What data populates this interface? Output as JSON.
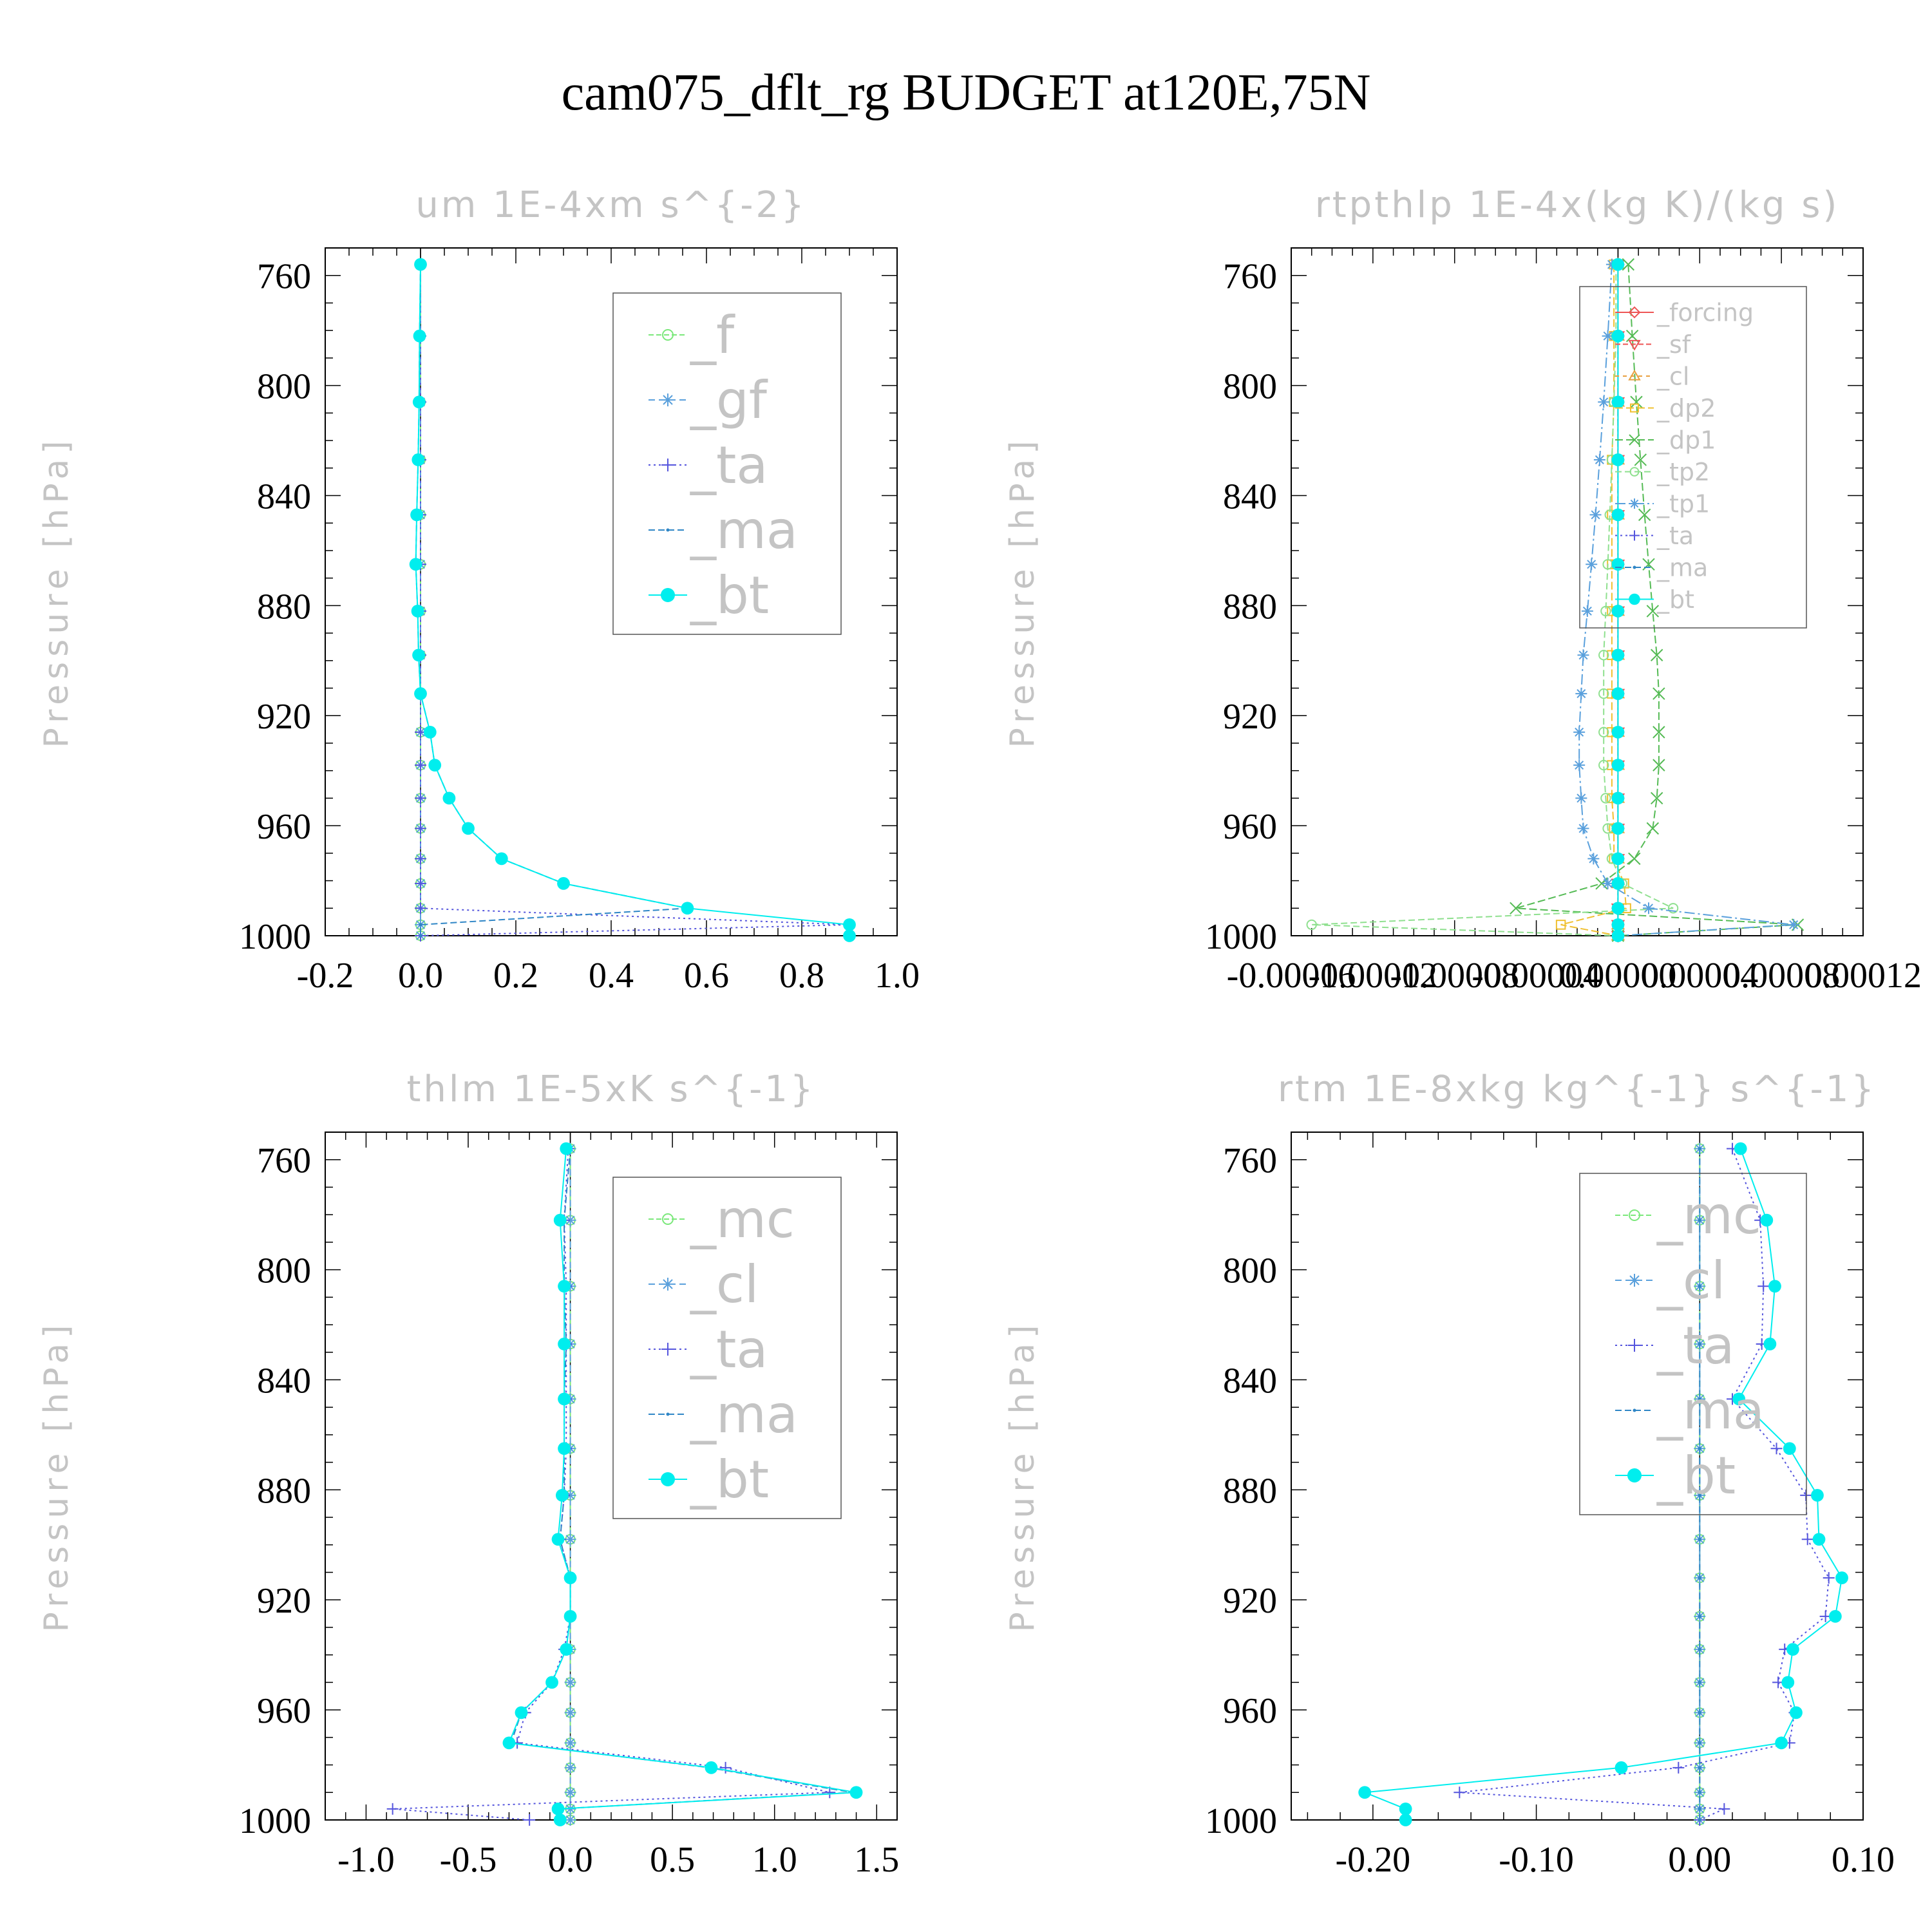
{
  "title": "cam075_dflt_rg  BUDGET at120E,75N",
  "chart_data": [
    {
      "type": "line",
      "title": "um   1E-4xm s^{-2}",
      "ylabel": "Pressure [hPa]",
      "yticks": [
        760,
        800,
        840,
        880,
        920,
        960,
        1000
      ],
      "yticklabels": [
        "760",
        "800",
        "840",
        "880",
        "920",
        "960",
        "1000"
      ],
      "ylim": [
        750,
        1000
      ],
      "xticks": [
        -0.2,
        0.0,
        0.2,
        0.4,
        0.6,
        0.8,
        1.0
      ],
      "xticklabels": [
        "-0.2",
        "0.0",
        "0.2",
        "0.4",
        "0.6",
        "0.8",
        "1.0"
      ],
      "xlim": [
        -0.2,
        1.0
      ],
      "minor_x": 4,
      "grid": false,
      "legend_position": "top-right",
      "p": [
        756,
        782,
        806,
        827,
        847,
        865,
        882,
        898,
        912,
        926,
        938,
        950,
        961,
        972,
        981,
        990,
        996,
        1000
      ],
      "series": [
        {
          "name": "_f",
          "color": "#7be87b",
          "marker": "circle-open",
          "dash": "8,4",
          "values": [
            0,
            0,
            0,
            0,
            0,
            0,
            0,
            0,
            0,
            0,
            0,
            0,
            0,
            0,
            0,
            0,
            0,
            0
          ]
        },
        {
          "name": "_gf",
          "color": "#5aa0dc",
          "marker": "star",
          "dash": "10,6",
          "values": [
            0,
            0,
            0,
            0,
            0,
            0,
            0,
            0,
            0,
            0,
            0,
            0,
            0,
            0,
            0,
            0,
            0,
            0
          ]
        },
        {
          "name": "_ta",
          "color": "#5555dd",
          "marker": "plus",
          "dash": "3,5",
          "values": [
            0,
            0,
            0,
            0,
            0,
            0,
            0,
            0,
            0,
            0,
            0,
            0,
            0,
            0,
            0,
            0,
            0.9,
            0
          ]
        },
        {
          "name": "_ma",
          "color": "#2f86c6",
          "marker": "dot",
          "dash": "10,5",
          "values": [
            0,
            -0.002,
            -0.003,
            -0.005,
            -0.008,
            -0.01,
            -0.006,
            -0.004,
            0,
            0.02,
            0.03,
            0.06,
            0.1,
            0.17,
            0.3,
            0.56,
            0,
            0
          ]
        },
        {
          "name": "_bt",
          "color": "#00eeee",
          "marker": "disk",
          "dash": "",
          "values": [
            0,
            -0.002,
            -0.003,
            -0.005,
            -0.008,
            -0.01,
            -0.006,
            -0.004,
            0,
            0.02,
            0.03,
            0.06,
            0.1,
            0.17,
            0.3,
            0.56,
            0.9,
            0.9
          ]
        }
      ]
    },
    {
      "type": "line",
      "title": "rtpthlp   1E-4x(kg K)/(kg s)",
      "ylabel": "Pressure [hPa]",
      "yticks": [
        760,
        800,
        840,
        880,
        920,
        960,
        1000
      ],
      "yticklabels": [
        "760",
        "800",
        "840",
        "880",
        "920",
        "960",
        "1000"
      ],
      "ylim": [
        750,
        1000
      ],
      "xticks": [
        -0.00016,
        -0.00012,
        -8e-05,
        -4e-05,
        0.0,
        4e-05,
        8e-05,
        0.00012
      ],
      "xticklabels": [
        "-0.00016",
        "-0.00012",
        "-0.00008",
        "-0.00004",
        "0.00000",
        "0.00004",
        "0.00008",
        "0.00012"
      ],
      "xlim": [
        -0.00016,
        0.00012
      ],
      "minor_x": 4,
      "grid": false,
      "legend_position": "top-right",
      "p": [
        756,
        782,
        806,
        827,
        847,
        865,
        882,
        898,
        912,
        926,
        938,
        950,
        961,
        972,
        981,
        990,
        996,
        1000
      ],
      "series": [
        {
          "name": "_forcing",
          "color": "#ee5555",
          "marker": "diamond-open",
          "dash": "",
          "values": [
            0,
            0,
            0,
            0,
            0,
            0,
            0,
            0,
            0,
            0,
            0,
            0,
            0,
            0,
            0,
            0,
            0,
            0
          ]
        },
        {
          "name": "_sf",
          "color": "#ee5555",
          "marker": "tri-down",
          "dash": "8,4",
          "values": [
            0,
            0,
            0,
            0,
            0,
            0,
            0,
            0,
            0,
            0,
            0,
            0,
            0,
            0,
            0,
            0,
            0,
            0
          ]
        },
        {
          "name": "_cl",
          "color": "#e8a040",
          "marker": "tri-up",
          "dash": "6,6",
          "values": [
            0,
            0,
            0,
            0,
            0,
            0,
            0,
            0,
            0,
            0,
            0,
            0,
            0,
            0,
            0,
            0,
            0,
            0
          ]
        },
        {
          "name": "_dp2",
          "color": "#f0c030",
          "marker": "square-open",
          "dash": "12,5",
          "values": [
            -2e-06,
            -2e-06,
            -2e-06,
            -3e-06,
            -3e-06,
            -3e-06,
            -3e-06,
            -3e-06,
            -3e-06,
            -3e-06,
            -3e-06,
            -3e-06,
            -2e-06,
            -2e-06,
            3e-06,
            4e-06,
            -2.8e-05,
            0
          ]
        },
        {
          "name": "_dp1",
          "color": "#55bb55",
          "marker": "x",
          "dash": "12,5",
          "values": [
            5e-06,
            7e-06,
            9e-06,
            1.1e-05,
            1.3e-05,
            1.5e-05,
            1.7e-05,
            1.9e-05,
            2e-05,
            2e-05,
            2e-05,
            1.9e-05,
            1.7e-05,
            8e-06,
            -8e-06,
            -5e-05,
            8.8e-05,
            0
          ]
        },
        {
          "name": "_tp2",
          "color": "#8fe08f",
          "marker": "circle-open",
          "dash": "10,5",
          "values": [
            -1e-06,
            -1e-06,
            -2e-06,
            -3e-06,
            -4e-06,
            -5e-06,
            -6e-06,
            -7e-06,
            -7e-06,
            -7e-06,
            -7e-06,
            -6e-06,
            -5e-06,
            -3e-06,
            2e-06,
            2.7e-05,
            -0.00015,
            0
          ]
        },
        {
          "name": "_tp1",
          "color": "#5aa0dc",
          "marker": "star",
          "dash": "16,5,3,5",
          "values": [
            -3e-06,
            -5e-06,
            -7e-06,
            -9e-06,
            -1.1e-05,
            -1.3e-05,
            -1.5e-05,
            -1.7e-05,
            -1.8e-05,
            -1.9e-05,
            -1.9e-05,
            -1.8e-05,
            -1.7e-05,
            -1.2e-05,
            -5e-06,
            1.5e-05,
            8.6e-05,
            0
          ]
        },
        {
          "name": "_ta",
          "color": "#5555dd",
          "marker": "plus",
          "dash": "3,5",
          "values": [
            0,
            0,
            0,
            0,
            0,
            0,
            0,
            0,
            0,
            0,
            0,
            0,
            0,
            0,
            0,
            0,
            0,
            0
          ]
        },
        {
          "name": "_ma",
          "color": "#2f86c6",
          "marker": "dot",
          "dash": "10,5",
          "values": [
            0,
            0,
            0,
            0,
            0,
            0,
            0,
            0,
            0,
            0,
            0,
            0,
            0,
            0,
            0,
            0,
            0,
            0
          ]
        },
        {
          "name": "_bt",
          "color": "#00eeee",
          "marker": "disk",
          "dash": "",
          "values": [
            0,
            0,
            0,
            0,
            0,
            0,
            0,
            0,
            0,
            0,
            0,
            0,
            0,
            0,
            0,
            0,
            0,
            0
          ]
        }
      ]
    },
    {
      "type": "line",
      "title": "thlm   1E-5xK s^{-1}",
      "ylabel": "Pressure [hPa]",
      "yticks": [
        760,
        800,
        840,
        880,
        920,
        960,
        1000
      ],
      "yticklabels": [
        "760",
        "800",
        "840",
        "880",
        "920",
        "960",
        "1000"
      ],
      "ylim": [
        750,
        1000
      ],
      "xticks": [
        -1.0,
        -0.5,
        0.0,
        0.5,
        1.0,
        1.5
      ],
      "xticklabels": [
        "-1.0",
        "-0.5",
        "0.0",
        "0.5",
        "1.0",
        "1.5"
      ],
      "xlim": [
        -1.2,
        1.6
      ],
      "minor_x": 5,
      "grid": false,
      "legend_position": "top-right",
      "p": [
        756,
        782,
        806,
        827,
        847,
        865,
        882,
        898,
        912,
        926,
        938,
        950,
        961,
        972,
        981,
        990,
        996,
        1000
      ],
      "series": [
        {
          "name": "_mc",
          "color": "#7be87b",
          "marker": "circle-open",
          "dash": "8,4",
          "values": [
            0,
            0,
            0,
            0,
            0,
            0,
            0,
            0,
            0,
            0,
            0,
            0,
            0,
            0,
            0,
            0,
            0,
            0
          ]
        },
        {
          "name": "_cl",
          "color": "#5aa0dc",
          "marker": "star",
          "dash": "10,6",
          "values": [
            0,
            0,
            0,
            0,
            0,
            0,
            0,
            0,
            0,
            0,
            0,
            0,
            0,
            0,
            0,
            0,
            0,
            0
          ]
        },
        {
          "name": "_ta",
          "color": "#5555dd",
          "marker": "plus",
          "dash": "3,5",
          "values": [
            -0.01,
            -0.03,
            -0.02,
            -0.02,
            -0.02,
            -0.02,
            -0.03,
            -0.05,
            0,
            0,
            -0.03,
            -0.09,
            -0.22,
            -0.26,
            0.76,
            1.27,
            -0.87,
            -0.2
          ]
        },
        {
          "name": "_ma",
          "color": "#2f86c6",
          "marker": "dot",
          "dash": "10,5",
          "values": [
            0,
            -0.03,
            -0.03,
            -0.02,
            -0.03,
            -0.03,
            -0.03,
            -0.05,
            0,
            0,
            -0.02,
            -0.09,
            -0.24,
            -0.29,
            0.68,
            1.38,
            -0.06,
            -0.05
          ]
        },
        {
          "name": "_bt",
          "color": "#00eeee",
          "marker": "disk",
          "dash": "",
          "values": [
            -0.02,
            -0.05,
            -0.03,
            -0.03,
            -0.03,
            -0.03,
            -0.04,
            -0.06,
            0,
            0,
            -0.02,
            -0.09,
            -0.24,
            -0.3,
            0.69,
            1.4,
            -0.06,
            -0.05
          ]
        }
      ]
    },
    {
      "type": "line",
      "title": "rtm   1E-8xkg kg^{-1} s^{-1}",
      "ylabel": "Pressure [hPa]",
      "yticks": [
        760,
        800,
        840,
        880,
        920,
        960,
        1000
      ],
      "yticklabels": [
        "760",
        "800",
        "840",
        "880",
        "920",
        "960",
        "1000"
      ],
      "ylim": [
        750,
        1000
      ],
      "xticks": [
        -0.2,
        -0.1,
        0.0,
        0.1
      ],
      "xticklabels": [
        "-0.20",
        "-0.10",
        "0.00",
        "0.10"
      ],
      "xlim": [
        -0.25,
        0.1
      ],
      "minor_x": 5,
      "grid": false,
      "legend_position": "top-right",
      "p": [
        756,
        782,
        806,
        827,
        847,
        865,
        882,
        898,
        912,
        926,
        938,
        950,
        961,
        972,
        981,
        990,
        996,
        1000
      ],
      "series": [
        {
          "name": "_mc",
          "color": "#7be87b",
          "marker": "circle-open",
          "dash": "8,4",
          "values": [
            0,
            0,
            0,
            0,
            0,
            0,
            0,
            0,
            0,
            0,
            0,
            0,
            0,
            0,
            0,
            0,
            0,
            0
          ]
        },
        {
          "name": "_cl",
          "color": "#5aa0dc",
          "marker": "star",
          "dash": "10,6",
          "values": [
            0,
            0,
            0,
            0,
            0,
            0,
            0,
            0,
            0,
            0,
            0,
            0,
            0,
            0,
            0,
            0,
            0,
            0
          ]
        },
        {
          "name": "_ta",
          "color": "#5555dd",
          "marker": "plus",
          "dash": "3,5",
          "values": [
            0.02,
            0.037,
            0.039,
            0.038,
            0.02,
            0.047,
            0.065,
            0.066,
            0.079,
            0.077,
            0.052,
            0.048,
            0.058,
            0.055,
            -0.013,
            -0.147,
            0.015,
            0
          ]
        },
        {
          "name": "_ma",
          "color": "#2f86c6",
          "marker": "dot",
          "dash": "10,5",
          "values": [
            0,
            0,
            0,
            0,
            0,
            0,
            0,
            0,
            0,
            0,
            0,
            0,
            0,
            0,
            0,
            0,
            0,
            0
          ]
        },
        {
          "name": "_bt",
          "color": "#00eeee",
          "marker": "disk",
          "dash": "",
          "values": [
            0.025,
            0.041,
            0.046,
            0.043,
            0.024,
            0.055,
            0.072,
            0.073,
            0.087,
            0.083,
            0.057,
            0.054,
            0.059,
            0.05,
            -0.048,
            -0.205,
            -0.18,
            -0.18
          ]
        }
      ]
    }
  ]
}
